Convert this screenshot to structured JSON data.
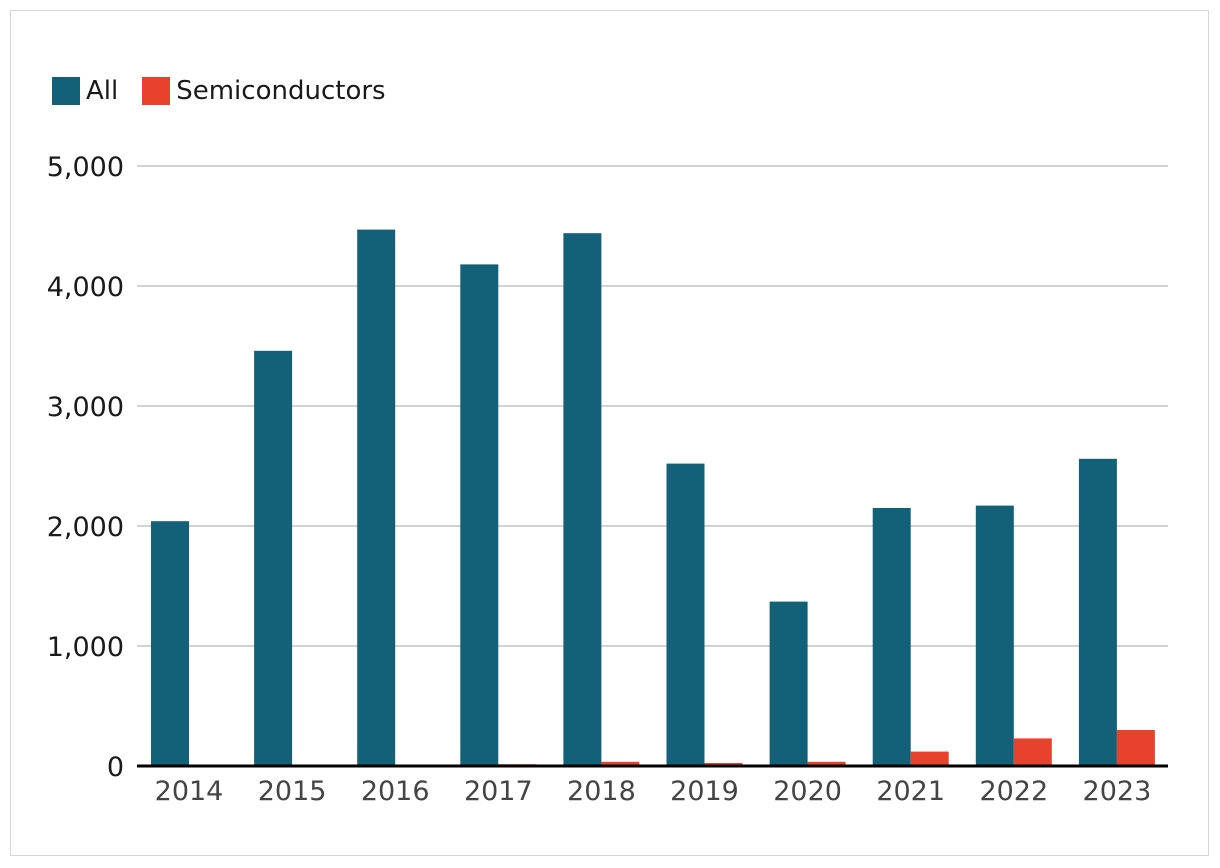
{
  "chart_data": {
    "type": "bar",
    "title": "",
    "xlabel": "",
    "ylabel": "",
    "categories": [
      "2014",
      "2015",
      "2016",
      "2017",
      "2018",
      "2019",
      "2020",
      "2021",
      "2022",
      "2023"
    ],
    "series": [
      {
        "name": "All",
        "color": "#126179",
        "values": [
          2040,
          3460,
          4470,
          4180,
          4440,
          2520,
          1370,
          2150,
          2170,
          2560
        ]
      },
      {
        "name": "Semiconductors",
        "color": "#e8412c",
        "values": [
          0,
          0,
          0,
          15,
          35,
          25,
          35,
          120,
          230,
          300
        ]
      }
    ],
    "ylim": [
      0,
      5000
    ],
    "yticks": [
      0,
      1000,
      2000,
      3000,
      4000,
      5000
    ],
    "ytick_labels": [
      "0",
      "1,000",
      "2,000",
      "3,000",
      "4,000",
      "5,000"
    ],
    "grid": true,
    "legend_position": "top-left"
  }
}
